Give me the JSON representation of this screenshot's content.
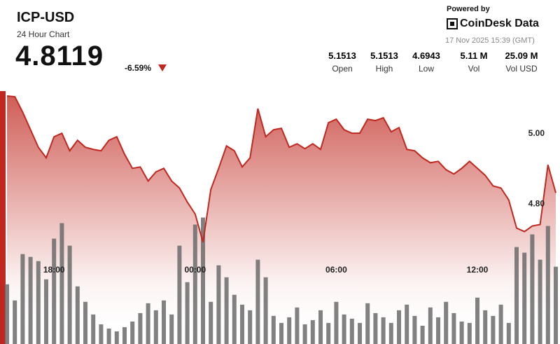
{
  "header": {
    "title": "ICP-USD",
    "subtitle": "24 Hour Chart",
    "price": "4.8119",
    "change": "-6.59%",
    "powered_by": "Powered by",
    "brand": "CoinDesk Data",
    "date": "17 Nov 2025 15:39 (GMT)",
    "stats": [
      {
        "value": "5.1513",
        "label": "Open"
      },
      {
        "value": "5.1513",
        "label": "High"
      },
      {
        "value": "4.6943",
        "label": "Low"
      },
      {
        "value": "5.11 M",
        "label": "Vol"
      },
      {
        "value": "25.09 M",
        "label": "Vol USD"
      }
    ]
  },
  "chart_data": {
    "type": "line",
    "color": "#c0281f",
    "categories": [
      null,
      null,
      null,
      null,
      null,
      null,
      "18:00",
      null,
      null,
      null,
      null,
      null,
      null,
      null,
      null,
      null,
      null,
      null,
      null,
      null,
      null,
      null,
      null,
      null,
      "00:00",
      null,
      null,
      null,
      null,
      null,
      null,
      null,
      null,
      null,
      null,
      null,
      null,
      null,
      null,
      null,
      null,
      null,
      "06:00",
      null,
      null,
      null,
      null,
      null,
      null,
      null,
      null,
      null,
      null,
      null,
      null,
      null,
      null,
      null,
      null,
      null,
      "12:00",
      null,
      null,
      null,
      null,
      null,
      null,
      null,
      null,
      null,
      null
    ],
    "series": [
      {
        "values": [
          5.106,
          5.104,
          5.06,
          5.01,
          4.96,
          4.93,
          4.99,
          5.0,
          4.95,
          4.98,
          4.96,
          4.954,
          4.95,
          4.98,
          4.99,
          4.94,
          4.9,
          4.904,
          4.864,
          4.89,
          4.9,
          4.864,
          4.844,
          4.804,
          4.77,
          4.69,
          4.84,
          4.9,
          4.964,
          4.95,
          4.904,
          4.93,
          5.07,
          4.99,
          5.01,
          5.014,
          4.96,
          4.97,
          4.956,
          4.97,
          4.954,
          5.03,
          5.04,
          5.01,
          5.0,
          5.0,
          5.04,
          5.036,
          5.044,
          5.004,
          5.016,
          4.954,
          4.95,
          4.93,
          4.916,
          4.92,
          4.896,
          4.884,
          4.9,
          4.92,
          4.9,
          4.88,
          4.85,
          4.844,
          4.81,
          4.73,
          4.72,
          4.736,
          4.74,
          4.91,
          4.83
        ]
      },
      {
        "color": "#6b6b6b",
        "axis": "y2",
        "values": [
          85,
          62,
          128,
          124,
          118,
          92,
          150,
          172,
          140,
          82,
          60,
          42,
          28,
          22,
          18,
          24,
          32,
          44,
          58,
          48,
          62,
          42,
          140,
          88,
          170,
          180,
          60,
          112,
          95,
          70,
          56,
          48,
          120,
          95,
          40,
          30,
          38,
          52,
          28,
          34,
          48,
          30,
          60,
          42,
          36,
          30,
          58,
          44,
          38,
          30,
          48,
          56,
          40,
          26,
          52,
          38,
          60,
          44,
          32,
          30,
          66,
          48,
          40,
          56,
          30,
          138,
          130,
          156,
          120,
          168,
          110
        ]
      }
    ],
    "ylim": [
      4.4,
      5.12
    ],
    "yticks": [
      {
        "value": 5.0,
        "label": "5.00"
      },
      {
        "value": 4.8,
        "label": "4.80"
      }
    ],
    "y2lim": [
      0,
      360
    ],
    "grid": false
  }
}
